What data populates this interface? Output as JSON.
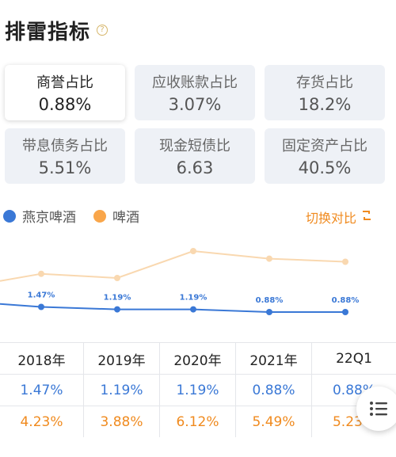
{
  "header": {
    "title": "排雷指标",
    "help_icon": "question-icon"
  },
  "metrics": [
    {
      "label": "商誉占比",
      "value": "0.88%",
      "selected": true
    },
    {
      "label": "应收账款占比",
      "value": "3.07%",
      "selected": false
    },
    {
      "label": "存货占比",
      "value": "18.2%",
      "selected": false
    },
    {
      "label": "带息债务占比",
      "value": "5.51%",
      "selected": false
    },
    {
      "label": "现金短债比",
      "value": "6.63",
      "selected": false
    },
    {
      "label": "固定资产占比",
      "value": "40.5%",
      "selected": false
    }
  ],
  "legend": {
    "series1": {
      "name": "燕京啤酒",
      "color": "#3a78d6"
    },
    "series2": {
      "name": "啤酒",
      "color": "#f9a64a"
    }
  },
  "switch_label": "切换对比",
  "colors": {
    "blue": "#3a78d6",
    "orange": "#f08a1e",
    "orange_light": "#f9d8b0"
  },
  "chart_data": {
    "type": "line",
    "categories": [
      "2018年",
      "2019年",
      "2020年",
      "2021年",
      "22Q1"
    ],
    "series": [
      {
        "name": "燕京啤酒",
        "values": [
          1.47,
          1.19,
          1.19,
          0.88,
          0.88
        ],
        "labels": [
          "1.47%",
          "1.19%",
          "1.19%",
          "0.88%",
          "0.88%"
        ]
      },
      {
        "name": "啤酒",
        "values": [
          4.23,
          3.88,
          6.12,
          5.49,
          5.23
        ]
      }
    ]
  },
  "table": {
    "headers": [
      "2018年",
      "2019年",
      "2020年",
      "2021年",
      "22Q1"
    ],
    "row1": [
      "1.47%",
      "1.19%",
      "1.19%",
      "0.88%",
      "0.88%"
    ],
    "row2": [
      "4.23%",
      "3.88%",
      "6.12%",
      "5.49%",
      "5.23%"
    ]
  }
}
